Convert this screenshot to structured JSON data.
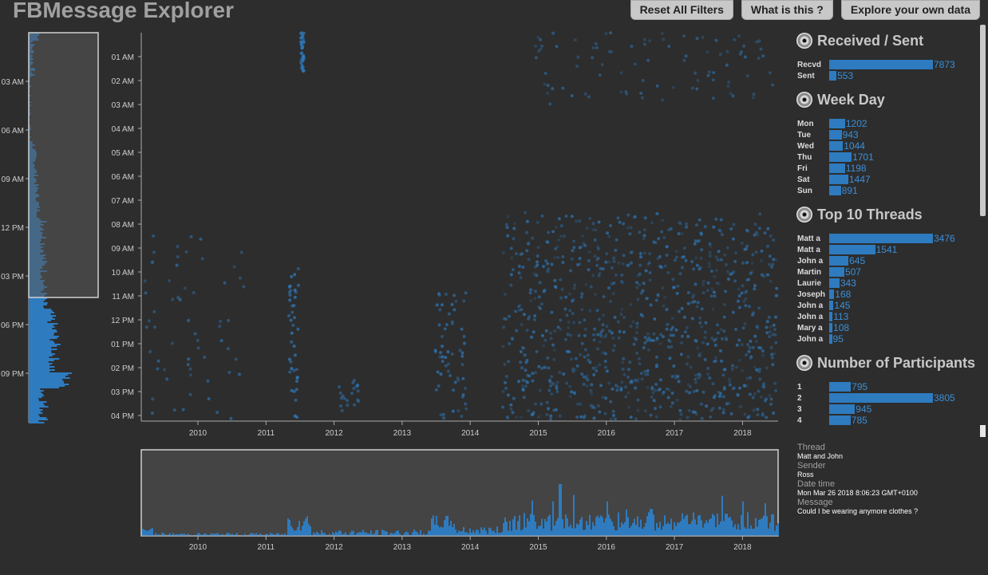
{
  "app": {
    "title": "FBMessage Explorer",
    "buttons": [
      "Reset All Filters",
      "What is this ?",
      "Explore your own data"
    ]
  },
  "left_hour_histogram": {
    "tick_labels": [
      "03 AM",
      "06 AM",
      "09 AM",
      "12 PM",
      "03 PM",
      "06 PM",
      "09 PM"
    ]
  },
  "main_scatter": {
    "y_tick_labels": [
      "01 AM",
      "02 AM",
      "03 AM",
      "04 AM",
      "05 AM",
      "06 AM",
      "07 AM",
      "08 AM",
      "09 AM",
      "10 AM",
      "11 AM",
      "12 PM",
      "01 PM",
      "02 PM",
      "03 PM",
      "04 PM"
    ],
    "x_tick_labels": [
      "2010",
      "2011",
      "2012",
      "2013",
      "2014",
      "2015",
      "2016",
      "2017",
      "2018"
    ],
    "color": "#2e7bbf"
  },
  "bottom_timeline": {
    "x_tick_labels": [
      "2010",
      "2011",
      "2012",
      "2013",
      "2014",
      "2015",
      "2016",
      "2017",
      "2018"
    ]
  },
  "sections": [
    {
      "title": "Received / Sent",
      "max": 7873,
      "rows": [
        {
          "label": "Recvd",
          "value": "7873"
        },
        {
          "label": "Sent",
          "value": "553"
        }
      ]
    },
    {
      "title": "Week Day",
      "max": 7873,
      "rows": [
        {
          "label": "Mon",
          "value": "1202"
        },
        {
          "label": "Tue",
          "value": "943"
        },
        {
          "label": "Wed",
          "value": "1044"
        },
        {
          "label": "Thu",
          "value": "1701"
        },
        {
          "label": "Fri",
          "value": "1198"
        },
        {
          "label": "Sat",
          "value": "1447"
        },
        {
          "label": "Sun",
          "value": "891"
        }
      ]
    },
    {
      "title": "Top 10 Threads",
      "max": 3476,
      "rows": [
        {
          "label": "Matt a",
          "value": "3476"
        },
        {
          "label": "Matt a",
          "value": "1541"
        },
        {
          "label": "John a",
          "value": "645"
        },
        {
          "label": "Martin",
          "value": "507"
        },
        {
          "label": "Laurie",
          "value": "343"
        },
        {
          "label": "Joseph",
          "value": "168"
        },
        {
          "label": "John a",
          "value": "145"
        },
        {
          "label": "John a",
          "value": "113"
        },
        {
          "label": "Mary a",
          "value": "108"
        },
        {
          "label": "John a",
          "value": "95"
        }
      ]
    },
    {
      "title": "Number of Participants",
      "max": 3805,
      "rows": [
        {
          "label": "1",
          "value": "795"
        },
        {
          "label": "2",
          "value": "3805"
        },
        {
          "label": "3",
          "value": "945"
        },
        {
          "label": "4",
          "value": "785"
        }
      ]
    }
  ],
  "details": {
    "thread_label": "Thread",
    "thread_value": "Matt and John",
    "sender_label": "Sender",
    "sender_value": "Ross",
    "datetime_label": "Date time",
    "datetime_value": "Mon Mar 26 2018 8:06:23 GMT+0100",
    "message_label": "Message",
    "message_value": "Could I be wearing anymore clothes ?"
  }
}
